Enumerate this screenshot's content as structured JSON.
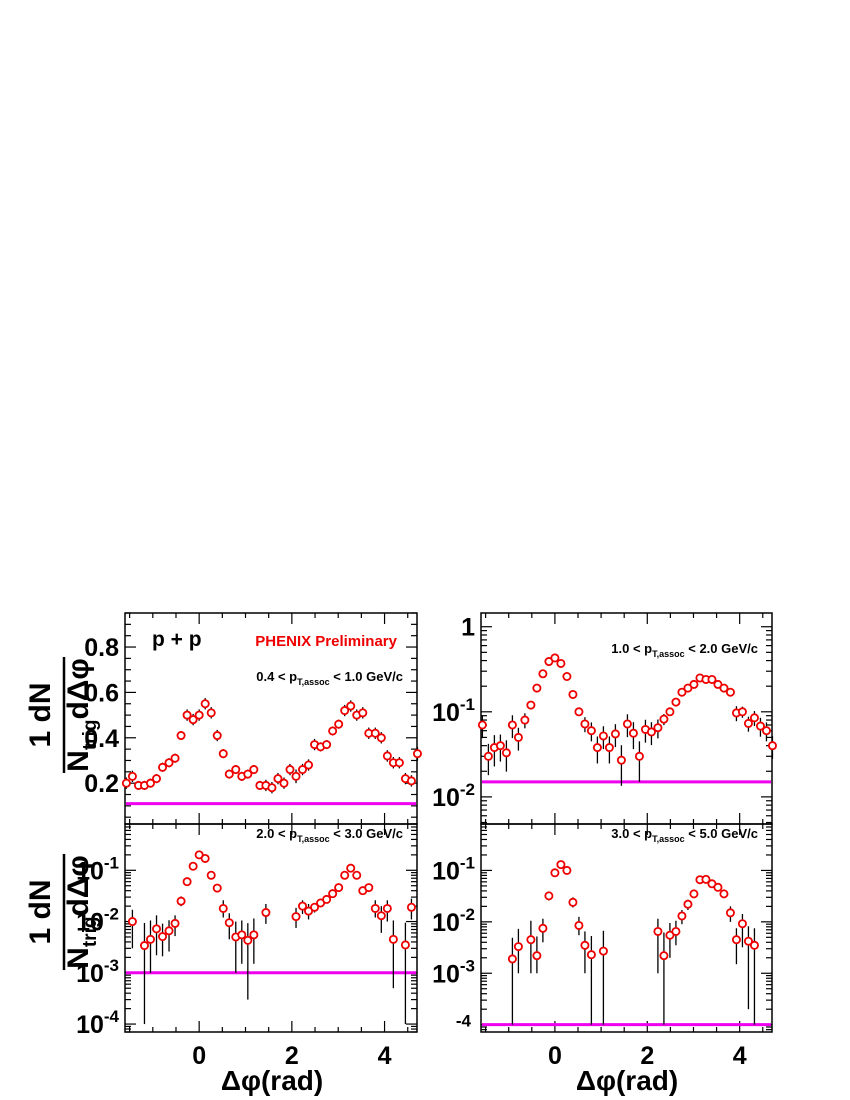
{
  "figure": {
    "ylabel_num": "1   dN",
    "ylabel_den_N": "N",
    "ylabel_den_sub": "trig",
    "ylabel_den_rest": "dΔφ",
    "xlabel": "Δφ(rad)"
  },
  "colors": {
    "marker": "#ee0000",
    "baseline": "#ee00ee",
    "errorbar": "#000000",
    "preliminary": "#ee0000"
  },
  "chart_data": [
    {
      "type": "scatter",
      "panel": "top-left",
      "title": "0.4 < p_T,assoc < 1.0 GeV/c",
      "label_main": "0.4 < p",
      "label_sub": "T,assoc",
      "label_tail": " < 1.0 GeV/c",
      "system_label": "p + p",
      "watermark": "PHENIX Preliminary",
      "xlim": [
        -1.6,
        4.7
      ],
      "ylim": [
        0.02,
        0.95
      ],
      "yscale": "linear",
      "yticks": [
        0.2,
        0.4,
        0.6,
        0.8
      ],
      "ytick_labels": [
        "0.2",
        "0.4",
        "0.6",
        "0.8"
      ],
      "xticks": [
        0,
        2,
        4
      ],
      "xtick_labels": [
        "0",
        "2",
        "4"
      ],
      "show_xtick_labels": false,
      "baseline": 0.11,
      "x": [
        -1.57,
        -1.44,
        -1.31,
        -1.18,
        -1.05,
        -0.92,
        -0.79,
        -0.65,
        -0.52,
        -0.39,
        -0.26,
        -0.13,
        0,
        0.13,
        0.26,
        0.39,
        0.52,
        0.65,
        0.79,
        0.92,
        1.05,
        1.18,
        1.31,
        1.44,
        1.57,
        1.7,
        1.83,
        1.96,
        2.09,
        2.23,
        2.36,
        2.49,
        2.62,
        2.75,
        2.88,
        3.01,
        3.14,
        3.27,
        3.4,
        3.53,
        3.66,
        3.8,
        3.93,
        4.06,
        4.19,
        4.32,
        4.45,
        4.58,
        4.71
      ],
      "y": [
        0.2,
        0.23,
        0.19,
        0.19,
        0.2,
        0.22,
        0.27,
        0.29,
        0.31,
        0.41,
        0.5,
        0.48,
        0.5,
        0.55,
        0.51,
        0.41,
        0.33,
        0.24,
        0.26,
        0.23,
        0.24,
        0.26,
        0.19,
        0.19,
        0.18,
        0.22,
        0.2,
        0.26,
        0.23,
        0.26,
        0.28,
        0.37,
        0.36,
        0.37,
        0.43,
        0.46,
        0.52,
        0.54,
        0.5,
        0.51,
        0.42,
        0.42,
        0.4,
        0.32,
        0.29,
        0.29,
        0.22,
        0.21,
        0.33
      ],
      "err": [
        0.025,
        0.025,
        0.02,
        0.02,
        0.02,
        0.02,
        0.02,
        0.02,
        0.02,
        0.02,
        0.025,
        0.025,
        0.025,
        0.025,
        0.025,
        0.025,
        0.02,
        0.02,
        0.02,
        0.02,
        0.02,
        0.02,
        0.02,
        0.025,
        0.025,
        0.025,
        0.025,
        0.025,
        0.03,
        0.025,
        0.025,
        0.025,
        0.02,
        0.02,
        0.02,
        0.02,
        0.025,
        0.025,
        0.025,
        0.025,
        0.025,
        0.025,
        0.025,
        0.025,
        0.025,
        0.025,
        0.025,
        0.025,
        0.03
      ]
    },
    {
      "type": "scatter",
      "panel": "top-right",
      "title": "1.0 < p_T,assoc < 2.0 GeV/c",
      "label_main": "1.0 < p",
      "label_sub": "T,assoc",
      "label_tail": " < 2.0 GeV/c",
      "xlim": [
        -1.6,
        4.7
      ],
      "ylim": [
        0.0048,
        1.45
      ],
      "yscale": "log",
      "yticks": [
        0.01,
        0.1,
        1
      ],
      "ytick_labels": [
        "10-2",
        "10-1",
        "1"
      ],
      "xticks": [
        0,
        2,
        4
      ],
      "xtick_labels": [
        "0",
        "2",
        "4"
      ],
      "show_xtick_labels": false,
      "baseline": 0.015,
      "x": [
        -1.57,
        -1.44,
        -1.31,
        -1.18,
        -1.05,
        -0.92,
        -0.79,
        -0.65,
        -0.52,
        -0.39,
        -0.26,
        -0.13,
        0,
        0.13,
        0.26,
        0.39,
        0.52,
        0.65,
        0.79,
        0.92,
        1.05,
        1.18,
        1.31,
        1.44,
        1.57,
        1.7,
        1.83,
        1.96,
        2.09,
        2.23,
        2.36,
        2.49,
        2.62,
        2.75,
        2.88,
        3.01,
        3.14,
        3.27,
        3.4,
        3.53,
        3.66,
        3.8,
        3.93,
        4.06,
        4.19,
        4.32,
        4.45,
        4.58,
        4.71
      ],
      "y": [
        0.07,
        0.03,
        0.038,
        0.04,
        0.033,
        0.07,
        0.05,
        0.08,
        0.12,
        0.19,
        0.28,
        0.39,
        0.43,
        0.37,
        0.26,
        0.16,
        0.1,
        0.072,
        0.06,
        0.038,
        0.052,
        0.038,
        0.055,
        0.027,
        0.072,
        0.056,
        0.03,
        0.062,
        0.058,
        0.065,
        0.082,
        0.1,
        0.13,
        0.17,
        0.19,
        0.21,
        0.25,
        0.24,
        0.24,
        0.21,
        0.19,
        0.17,
        0.097,
        0.1,
        0.073,
        0.085,
        0.068,
        0.06,
        0.04
      ],
      "err_frac": [
        0.3,
        0.4,
        0.4,
        0.35,
        0.4,
        0.3,
        0.3,
        0.2,
        0.1,
        0.06,
        0.05,
        0.05,
        0.05,
        0.05,
        0.05,
        0.06,
        0.1,
        0.2,
        0.25,
        0.35,
        0.3,
        0.35,
        0.3,
        0.5,
        0.3,
        0.35,
        0.5,
        0.3,
        0.3,
        0.25,
        0.15,
        0.1,
        0.08,
        0.06,
        0.05,
        0.05,
        0.05,
        0.05,
        0.05,
        0.05,
        0.06,
        0.07,
        0.2,
        0.15,
        0.2,
        0.2,
        0.25,
        0.25,
        0.3
      ]
    },
    {
      "type": "scatter",
      "panel": "bottom-left",
      "title": "2.0 < p_T,assoc < 3.0 GeV/c",
      "label_main": "2.0 < p",
      "label_sub": "T,assoc",
      "label_tail": " < 3.0 GeV/c",
      "xlim": [
        -1.6,
        4.7
      ],
      "ylim": [
        7e-05,
        0.8
      ],
      "yscale": "log",
      "yticks": [
        0.0001,
        0.001,
        0.01,
        0.1
      ],
      "ytick_labels": [
        "10-4",
        "10-3",
        "10-2",
        "10-1"
      ],
      "xticks": [
        0,
        2,
        4
      ],
      "xtick_labels": [
        "0",
        "2",
        "4"
      ],
      "show_xtick_labels": true,
      "baseline": 0.001,
      "x": [
        -1.44,
        -1.18,
        -1.05,
        -0.92,
        -0.79,
        -0.65,
        -0.52,
        -0.39,
        -0.26,
        -0.13,
        0,
        0.13,
        0.26,
        0.39,
        0.52,
        0.65,
        0.79,
        0.92,
        1.05,
        1.18,
        1.44,
        2.09,
        2.23,
        2.36,
        2.49,
        2.62,
        2.75,
        2.88,
        3.01,
        3.14,
        3.27,
        3.4,
        3.53,
        3.66,
        3.8,
        3.93,
        4.06,
        4.19,
        4.45,
        4.58
      ],
      "y": [
        0.01,
        0.0034,
        0.0045,
        0.0072,
        0.0051,
        0.0066,
        0.0092,
        0.025,
        0.06,
        0.12,
        0.2,
        0.17,
        0.08,
        0.045,
        0.018,
        0.0095,
        0.005,
        0.0055,
        0.0043,
        0.0055,
        0.015,
        0.0125,
        0.02,
        0.016,
        0.019,
        0.023,
        0.027,
        0.035,
        0.046,
        0.08,
        0.11,
        0.08,
        0.04,
        0.046,
        0.018,
        0.013,
        0.018,
        0.0045,
        0.0035,
        0.019
      ],
      "err_lo": [
        0.007,
        0.0033,
        0.0035,
        0.005,
        0.003,
        0.004,
        0.004,
        0.005,
        0.006,
        0.008,
        0.01,
        0.01,
        0.006,
        0.005,
        0.006,
        0.005,
        0.004,
        0.004,
        0.004,
        0.004,
        0.006,
        0.005,
        0.006,
        0.005,
        0.004,
        0.004,
        0.004,
        0.004,
        0.005,
        0.006,
        0.008,
        0.006,
        0.005,
        0.005,
        0.006,
        0.007,
        0.008,
        0.004,
        0.0034,
        0.008
      ],
      "err_hi": [
        0.007,
        0.006,
        0.006,
        0.006,
        0.004,
        0.004,
        0.004,
        0.006,
        0.008,
        0.012,
        0.015,
        0.015,
        0.01,
        0.008,
        0.008,
        0.005,
        0.005,
        0.005,
        0.005,
        0.006,
        0.007,
        0.006,
        0.006,
        0.006,
        0.004,
        0.005,
        0.005,
        0.005,
        0.006,
        0.01,
        0.012,
        0.01,
        0.006,
        0.006,
        0.008,
        0.007,
        0.008,
        0.006,
        0.006,
        0.009
      ]
    },
    {
      "type": "scatter",
      "panel": "bottom-right",
      "title": "3.0 < p_T,assoc < 5.0 GeV/c",
      "label_main": "3.0 < p",
      "label_sub": "T,assoc",
      "label_tail": " < 5.0 GeV/c",
      "xlim": [
        -1.6,
        4.7
      ],
      "ylim": [
        7.2e-05,
        0.8
      ],
      "yscale": "log",
      "yticks": [
        0.001,
        0.01,
        0.1
      ],
      "ytick_labels": [
        "10-3",
        "10-2",
        "10-1"
      ],
      "extra_ytick_label": "-4",
      "extra_ytick_value": 0.0001,
      "xticks": [
        0,
        2,
        4
      ],
      "xtick_labels": [
        "0",
        "2",
        "4"
      ],
      "show_xtick_labels": true,
      "baseline": 0.0001,
      "x": [
        -0.92,
        -0.79,
        -0.52,
        -0.39,
        -0.26,
        -0.13,
        0,
        0.13,
        0.26,
        0.39,
        0.52,
        0.65,
        0.79,
        1.05,
        2.23,
        2.36,
        2.49,
        2.62,
        2.75,
        2.88,
        3.01,
        3.14,
        3.27,
        3.4,
        3.53,
        3.66,
        3.8,
        3.93,
        4.06,
        4.19,
        4.32
      ],
      "y": [
        0.0019,
        0.0033,
        0.0045,
        0.0022,
        0.0075,
        0.032,
        0.09,
        0.13,
        0.1,
        0.024,
        0.0085,
        0.0035,
        0.0023,
        0.0027,
        0.0065,
        0.0022,
        0.0055,
        0.0065,
        0.013,
        0.022,
        0.035,
        0.066,
        0.067,
        0.055,
        0.047,
        0.035,
        0.015,
        0.0045,
        0.0092,
        0.0042,
        0.0035
      ],
      "err_lo": [
        0.0018,
        0.0023,
        0.0035,
        0.0012,
        0.0035,
        0.006,
        0.009,
        0.012,
        0.01,
        0.005,
        0.003,
        0.0025,
        0.0022,
        0.0026,
        0.0055,
        0.0021,
        0.0035,
        0.003,
        0.004,
        0.005,
        0.006,
        0.008,
        0.008,
        0.007,
        0.006,
        0.006,
        0.005,
        0.003,
        0.006,
        0.004,
        0.0034
      ],
      "err_hi": [
        0.003,
        0.004,
        0.006,
        0.003,
        0.004,
        0.006,
        0.01,
        0.015,
        0.012,
        0.006,
        0.004,
        0.003,
        0.003,
        0.004,
        0.005,
        0.004,
        0.004,
        0.004,
        0.004,
        0.005,
        0.006,
        0.008,
        0.008,
        0.007,
        0.006,
        0.006,
        0.005,
        0.003,
        0.005,
        0.004,
        0.004
      ]
    }
  ]
}
